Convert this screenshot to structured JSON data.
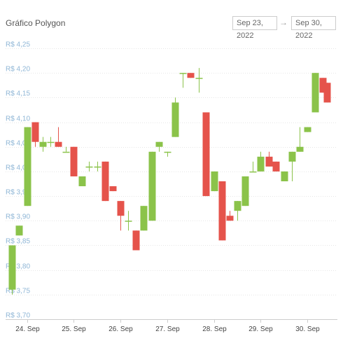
{
  "header": {
    "title": "Gráfico Polygon",
    "date_from": "Sep 23, 2022",
    "date_to": "Sep 30, 2022",
    "arrow": "→"
  },
  "colors": {
    "up": "#8bc34a",
    "down": "#e5534b",
    "grid": "#e6e6e6",
    "y_label": "#8fb6d6"
  },
  "chart_data": {
    "type": "candlestick",
    "title": "Gráfico Polygon",
    "xlabel": "",
    "ylabel": "",
    "ylim": [
      3.7,
      4.26
    ],
    "y_ticks": [
      3.7,
      3.75,
      3.8,
      3.85,
      3.9,
      3.95,
      4.0,
      4.05,
      4.1,
      4.15,
      4.2,
      4.25
    ],
    "y_tick_labels": [
      "R$ 3,70",
      "R$ 3,75",
      "R$ 3,80",
      "R$ 3,85",
      "R$ 3,90",
      "R$ 3,95",
      "R$ 4,00",
      "R$ 4,05",
      "R$ 4,10",
      "R$ 4,15",
      "R$ 4,20",
      "R$ 4,25"
    ],
    "x_ticks": [
      {
        "label": "24. Sep",
        "day": 24
      },
      {
        "label": "25. Sep",
        "day": 25
      },
      {
        "label": "26. Sep",
        "day": 26
      },
      {
        "label": "27. Sep",
        "day": 27
      },
      {
        "label": "28. Sep",
        "day": 28
      },
      {
        "label": "29. Sep",
        "day": 29
      },
      {
        "label": "30. Sep",
        "day": 30
      }
    ],
    "x_range": [
      23.6,
      30.42
    ],
    "grid": true,
    "candles": [
      {
        "t": 23.67,
        "open": 3.76,
        "high": 3.85,
        "low": 3.75,
        "close": 3.85
      },
      {
        "t": 23.83,
        "open": 3.87,
        "high": 3.89,
        "low": 3.87,
        "close": 3.89
      },
      {
        "t": 24.0,
        "open": 3.93,
        "high": 4.09,
        "low": 3.93,
        "close": 4.09
      },
      {
        "t": 24.17,
        "open": 4.1,
        "high": 4.1,
        "low": 4.05,
        "close": 4.06
      },
      {
        "t": 24.33,
        "open": 4.05,
        "high": 4.07,
        "low": 4.04,
        "close": 4.06
      },
      {
        "t": 24.5,
        "open": 4.06,
        "high": 4.07,
        "low": 4.05,
        "close": 4.06
      },
      {
        "t": 24.67,
        "open": 4.06,
        "high": 4.09,
        "low": 4.05,
        "close": 4.05
      },
      {
        "t": 24.83,
        "open": 4.04,
        "high": 4.05,
        "low": 4.04,
        "close": 4.04
      },
      {
        "t": 25.0,
        "open": 4.05,
        "high": 4.05,
        "low": 3.99,
        "close": 3.99
      },
      {
        "t": 25.17,
        "open": 3.97,
        "high": 3.99,
        "low": 3.97,
        "close": 3.99
      },
      {
        "t": 25.33,
        "open": 4.01,
        "high": 4.02,
        "low": 4.0,
        "close": 4.01
      },
      {
        "t": 25.5,
        "open": 4.01,
        "high": 4.02,
        "low": 4.0,
        "close": 4.01
      },
      {
        "t": 25.67,
        "open": 4.02,
        "high": 4.02,
        "low": 3.94,
        "close": 3.94
      },
      {
        "t": 25.83,
        "open": 3.97,
        "high": 3.97,
        "low": 3.96,
        "close": 3.96
      },
      {
        "t": 26.0,
        "open": 3.94,
        "high": 3.94,
        "low": 3.88,
        "close": 3.91
      },
      {
        "t": 26.17,
        "open": 3.9,
        "high": 3.92,
        "low": 3.88,
        "close": 3.9
      },
      {
        "t": 26.33,
        "open": 3.88,
        "high": 3.88,
        "low": 3.84,
        "close": 3.84
      },
      {
        "t": 26.5,
        "open": 3.88,
        "high": 3.93,
        "low": 3.88,
        "close": 3.93
      },
      {
        "t": 26.67,
        "open": 3.9,
        "high": 4.04,
        "low": 3.9,
        "close": 4.04
      },
      {
        "t": 26.83,
        "open": 4.05,
        "high": 4.06,
        "low": 4.04,
        "close": 4.06
      },
      {
        "t": 27.0,
        "open": 4.04,
        "high": 4.04,
        "low": 4.03,
        "close": 4.04
      },
      {
        "t": 27.17,
        "open": 4.07,
        "high": 4.15,
        "low": 4.07,
        "close": 4.14
      },
      {
        "t": 27.33,
        "open": 4.2,
        "high": 4.2,
        "low": 4.17,
        "close": 4.2
      },
      {
        "t": 27.5,
        "open": 4.2,
        "high": 4.2,
        "low": 4.19,
        "close": 4.19
      },
      {
        "t": 27.67,
        "open": 4.19,
        "high": 4.21,
        "low": 4.16,
        "close": 4.19
      },
      {
        "t": 27.83,
        "open": 4.12,
        "high": 4.12,
        "low": 3.95,
        "close": 3.95
      },
      {
        "t": 28.0,
        "open": 3.96,
        "high": 4.0,
        "low": 3.96,
        "close": 4.0
      },
      {
        "t": 28.17,
        "open": 3.98,
        "high": 3.98,
        "low": 3.86,
        "close": 3.86
      },
      {
        "t": 28.33,
        "open": 3.91,
        "high": 3.92,
        "low": 3.9,
        "close": 3.9
      },
      {
        "t": 28.5,
        "open": 3.92,
        "high": 3.94,
        "low": 3.9,
        "close": 3.94
      },
      {
        "t": 28.67,
        "open": 3.93,
        "high": 3.99,
        "low": 3.93,
        "close": 3.99
      },
      {
        "t": 28.83,
        "open": 4.0,
        "high": 4.02,
        "low": 4.0,
        "close": 4.0
      },
      {
        "t": 29.0,
        "open": 4.0,
        "high": 4.04,
        "low": 4.0,
        "close": 4.03
      },
      {
        "t": 29.17,
        "open": 4.03,
        "high": 4.04,
        "low": 4.01,
        "close": 4.01
      },
      {
        "t": 29.33,
        "open": 4.02,
        "high": 4.02,
        "low": 4.0,
        "close": 4.0
      },
      {
        "t": 29.5,
        "open": 3.98,
        "high": 4.0,
        "low": 3.98,
        "close": 4.0
      },
      {
        "t": 29.67,
        "open": 4.02,
        "high": 4.04,
        "low": 3.98,
        "close": 4.04
      },
      {
        "t": 29.83,
        "open": 4.04,
        "high": 4.09,
        "low": 4.04,
        "close": 4.05
      },
      {
        "t": 30.0,
        "open": 4.08,
        "high": 4.09,
        "low": 4.08,
        "close": 4.09
      },
      {
        "t": 30.17,
        "open": 4.12,
        "high": 4.2,
        "low": 4.12,
        "close": 4.2
      },
      {
        "t": 30.33,
        "open": 4.19,
        "high": 4.19,
        "low": 4.16,
        "close": 4.16
      },
      {
        "t": 30.42,
        "open": 4.18,
        "high": 4.18,
        "low": 4.14,
        "close": 4.14
      }
    ]
  }
}
